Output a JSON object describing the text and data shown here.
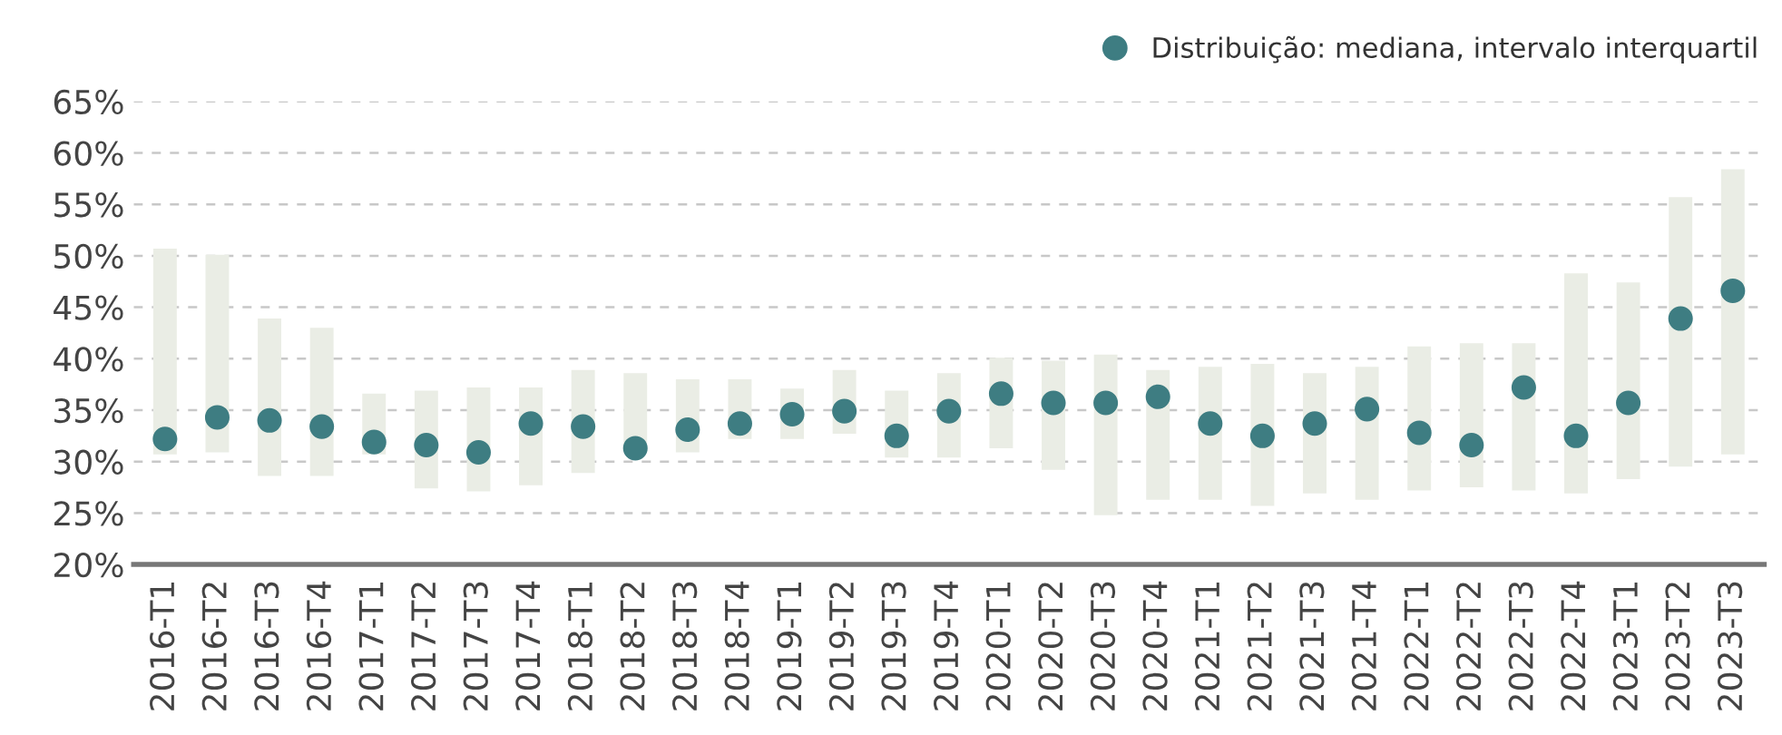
{
  "chart_data": {
    "type": "bar",
    "categories": [
      "2016-T1",
      "2016-T2",
      "2016-T3",
      "2016-T4",
      "2017-T1",
      "2017-T2",
      "2017-T3",
      "2017-T4",
      "2018-T1",
      "2018-T2",
      "2018-T3",
      "2018-T4",
      "2019-T1",
      "2019-T2",
      "2019-T3",
      "2019-T4",
      "2020-T1",
      "2020-T2",
      "2020-T3",
      "2020-T4",
      "2021-T1",
      "2021-T2",
      "2021-T3",
      "2021-T4",
      "2022-T1",
      "2022-T2",
      "2022-T3",
      "2022-T4",
      "2023-T1",
      "2023-T2",
      "2023-T3"
    ],
    "series": [
      {
        "color": "#eaede5",
        "base": [
          30.7,
          30.9,
          28.6,
          28.6,
          30.7,
          27.4,
          27.1,
          27.7,
          28.9,
          31.0,
          30.9,
          32.2,
          32.2,
          32.7,
          30.4,
          30.4,
          31.3,
          29.2,
          24.8,
          26.3,
          26.3,
          25.7,
          26.9,
          26.3,
          27.2,
          27.5,
          27.2,
          26.9,
          28.3,
          29.5,
          30.7
        ],
        "values": [
          20.0,
          19.2,
          15.3,
          14.4,
          5.9,
          9.5,
          10.1,
          9.5,
          10.0,
          7.6,
          7.1,
          5.8,
          4.9,
          6.2,
          6.5,
          8.2,
          8.8,
          10.6,
          15.6,
          12.6,
          12.9,
          13.8,
          11.7,
          12.9,
          14.0,
          14.0,
          14.3,
          21.4,
          19.1,
          26.2,
          27.7
        ]
      },
      {
        "type": "scatter",
        "name": "Distribuição: mediana, intervalo interquartil",
        "color": "#3e7d82",
        "marker": "circle",
        "values": [
          32.2,
          34.3,
          34.0,
          33.4,
          31.9,
          31.6,
          30.9,
          33.7,
          33.4,
          31.3,
          33.1,
          33.7,
          34.6,
          34.9,
          32.5,
          34.9,
          36.6,
          35.7,
          35.7,
          36.3,
          33.7,
          32.5,
          33.7,
          35.1,
          32.8,
          31.6,
          37.2,
          32.5,
          35.7,
          43.9,
          46.6
        ]
      }
    ],
    "ylim": [
      20,
      65
    ],
    "yticks": [
      {
        "value": 20,
        "label": "20%"
      },
      {
        "value": 25,
        "label": "25%"
      },
      {
        "value": 30,
        "label": "30%"
      },
      {
        "value": 35,
        "label": "35%"
      },
      {
        "value": 40,
        "label": "40%"
      },
      {
        "value": 45,
        "label": "45%"
      },
      {
        "value": 50,
        "label": "50%"
      },
      {
        "value": 55,
        "label": "55%"
      },
      {
        "value": 60,
        "label": "60%"
      },
      {
        "value": 65,
        "label": "65%"
      }
    ],
    "grid": "y",
    "legend": "top right"
  }
}
